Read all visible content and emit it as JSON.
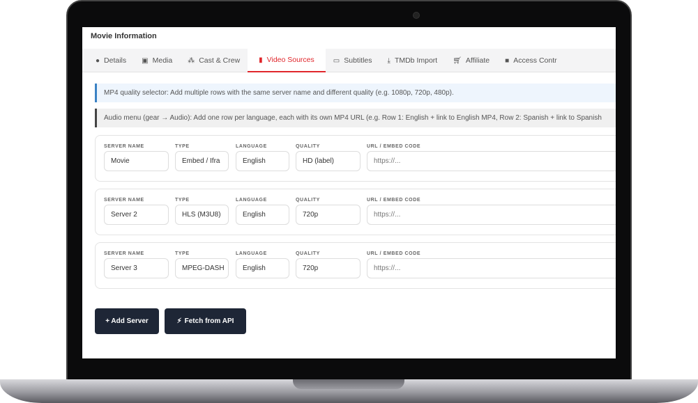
{
  "title": "Movie Information",
  "tabs": [
    {
      "label": "Details",
      "icon": "info-circle-icon"
    },
    {
      "label": "Media",
      "icon": "image-icon"
    },
    {
      "label": "Cast & Crew",
      "icon": "users-icon"
    },
    {
      "label": "Video Sources",
      "icon": "film-icon",
      "active": true
    },
    {
      "label": "Subtitles",
      "icon": "closed-captions-icon"
    },
    {
      "label": "TMDb Import",
      "icon": "download-icon"
    },
    {
      "label": "Affiliate",
      "icon": "cart-icon"
    },
    {
      "label": "Access Contr",
      "icon": "lock-icon"
    }
  ],
  "notices": [
    "MP4 quality selector: Add multiple rows with the same server name and different quality (e.g. 1080p, 720p, 480p).",
    "Audio menu (gear → Audio): Add one row per language, each with its own MP4 URL (e.g. Row 1: English + link to English MP4, Row 2: Spanish + link to Spanish"
  ],
  "labels": {
    "server": "SERVER NAME",
    "type": "TYPE",
    "language": "LANGUAGE",
    "quality": "QUALITY",
    "url": "URL / EMBED CODE"
  },
  "servers": [
    {
      "server": "Movie",
      "type": "Embed / Ifra",
      "language": "English",
      "quality": "HD (label)",
      "url_placeholder": "https://..."
    },
    {
      "server": "Server 2",
      "type": "HLS (M3U8)",
      "language": "English",
      "quality": "720p",
      "url_placeholder": "https://..."
    },
    {
      "server": "Server 3",
      "type": "MPEG-DASH",
      "language": "English",
      "quality": "720p",
      "url_placeholder": "https://..."
    }
  ],
  "buttons": {
    "add": "+ Add Server",
    "fetch": "Fetch from API"
  },
  "colors": {
    "accent": "#e0262b",
    "button": "#1e2636"
  }
}
